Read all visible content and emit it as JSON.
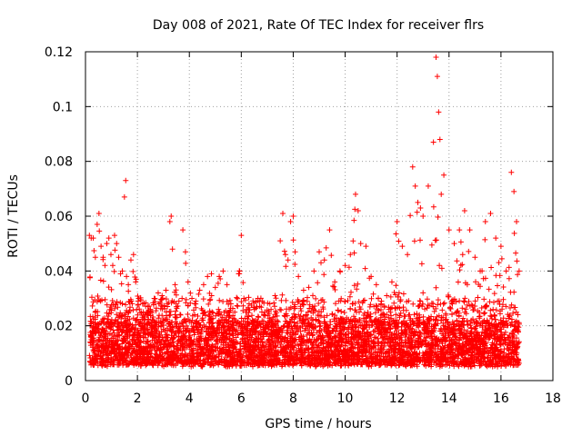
{
  "chart_data": {
    "type": "scatter",
    "title": "Day 008 of 2021, Rate Of TEC Index for receiver flrs",
    "xlabel": "GPS time / hours",
    "ylabel": "ROTI / TECUs",
    "xlim": [
      0,
      18
    ],
    "ylim": [
      0,
      0.12
    ],
    "xticks": [
      0,
      2,
      4,
      6,
      8,
      10,
      12,
      14,
      16,
      18
    ],
    "xtick_labels": [
      "0",
      "2",
      "4",
      "6",
      "8",
      "10",
      "12",
      "14",
      "16",
      "18"
    ],
    "yticks": [
      0,
      0.02,
      0.04,
      0.06,
      0.08,
      0.1,
      0.12
    ],
    "ytick_labels": [
      "0",
      "0.02",
      "0.04",
      "0.06",
      "0.08",
      "0.1",
      "0.12"
    ],
    "grid": true,
    "marker": "plus",
    "color": "#ff0000",
    "series": [
      {
        "name": "ROTI",
        "x": [
          0.15,
          0.22,
          0.3,
          0.38,
          0.45,
          0.52,
          0.6,
          0.68,
          0.75,
          0.82,
          0.9,
          0.98,
          1.05,
          1.12,
          1.2,
          1.28,
          1.35,
          1.42,
          1.5,
          1.55,
          1.58,
          1.65,
          1.75,
          1.85,
          1.95,
          2.05,
          2.2,
          2.35,
          2.5,
          2.65,
          2.8,
          2.95,
          3.1,
          3.25,
          3.3,
          3.35,
          3.45,
          3.6,
          3.75,
          3.85,
          3.95,
          4.1,
          4.25,
          4.4,
          4.55,
          4.7,
          4.85,
          5.0,
          5.15,
          5.3,
          5.45,
          5.6,
          5.75,
          5.9,
          6.0,
          6.1,
          6.3,
          6.5,
          6.7,
          6.9,
          7.1,
          7.3,
          7.5,
          7.6,
          7.7,
          7.8,
          7.9,
          8.0,
          8.2,
          8.4,
          8.6,
          8.8,
          9.0,
          9.2,
          9.4,
          9.6,
          9.8,
          10.0,
          10.2,
          10.4,
          10.5,
          10.6,
          10.8,
          11.0,
          11.2,
          11.4,
          11.6,
          11.8,
          12.0,
          12.2,
          12.4,
          12.6,
          12.7,
          12.8,
          12.9,
          13.0,
          13.2,
          13.4,
          13.5,
          13.55,
          13.6,
          13.65,
          13.7,
          13.8,
          14.0,
          14.2,
          14.4,
          14.6,
          14.8,
          15.0,
          15.2,
          15.4,
          15.6,
          15.8,
          16.0,
          16.2,
          16.4,
          16.5,
          16.6,
          16.7
        ],
        "y": [
          0.053,
          0.052,
          0.052,
          0.045,
          0.057,
          0.061,
          0.049,
          0.045,
          0.042,
          0.05,
          0.052,
          0.046,
          0.042,
          0.053,
          0.05,
          0.045,
          0.039,
          0.04,
          0.067,
          0.073,
          0.038,
          0.035,
          0.044,
          0.046,
          0.037,
          0.03,
          0.028,
          0.025,
          0.026,
          0.03,
          0.032,
          0.031,
          0.033,
          0.058,
          0.06,
          0.048,
          0.035,
          0.029,
          0.055,
          0.047,
          0.036,
          0.03,
          0.029,
          0.033,
          0.035,
          0.038,
          0.039,
          0.034,
          0.038,
          0.04,
          0.035,
          0.028,
          0.025,
          0.039,
          0.053,
          0.03,
          0.028,
          0.026,
          0.029,
          0.025,
          0.028,
          0.031,
          0.051,
          0.061,
          0.046,
          0.044,
          0.058,
          0.06,
          0.038,
          0.033,
          0.034,
          0.04,
          0.047,
          0.044,
          0.055,
          0.036,
          0.04,
          0.042,
          0.046,
          0.068,
          0.062,
          0.05,
          0.049,
          0.038,
          0.035,
          0.029,
          0.031,
          0.036,
          0.058,
          0.049,
          0.046,
          0.078,
          0.071,
          0.065,
          0.063,
          0.06,
          0.071,
          0.087,
          0.118,
          0.111,
          0.098,
          0.088,
          0.068,
          0.075,
          0.055,
          0.05,
          0.055,
          0.062,
          0.055,
          0.045,
          0.04,
          0.058,
          0.061,
          0.052,
          0.049,
          0.04,
          0.076,
          0.069,
          0.058,
          0.04
        ]
      }
    ]
  }
}
